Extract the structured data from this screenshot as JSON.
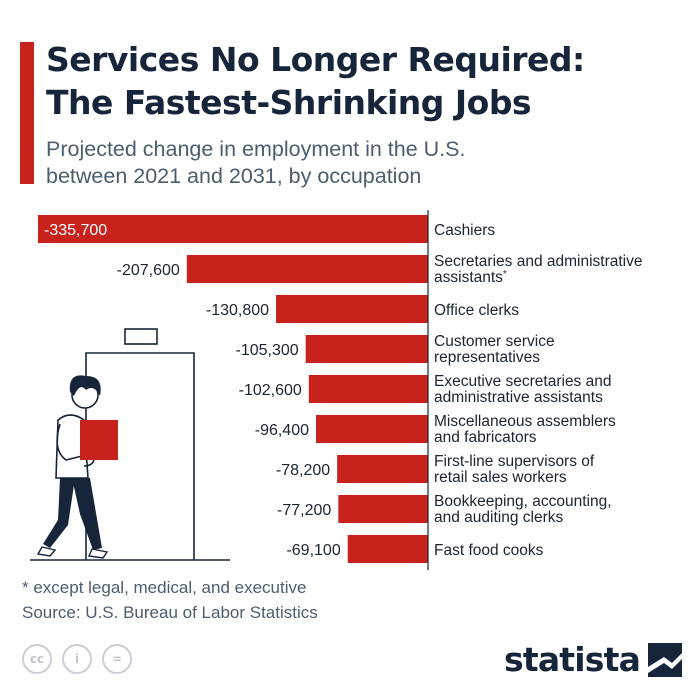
{
  "header": {
    "title": "Services No Longer Required:\nThe Fastest-Shrinking Jobs",
    "subtitle": "Projected change in employment in the U.S.\nbetween 2021 and 2031, by occupation"
  },
  "chart_data": {
    "type": "bar",
    "orientation": "horizontal",
    "categories": [
      [
        "Cashiers"
      ],
      [
        "Secretaries and administrative",
        "assistants*"
      ],
      [
        "Office clerks"
      ],
      [
        "Customer service",
        "representatives"
      ],
      [
        "Executive secretaries and",
        "administrative assistants"
      ],
      [
        "Miscellaneous assemblers",
        "and fabricators"
      ],
      [
        "First-line supervisors of",
        "retail sales workers"
      ],
      [
        "Bookkeeping, accounting,",
        "and auditing clerks"
      ],
      [
        "Fast food cooks"
      ]
    ],
    "values": [
      -335700,
      -207600,
      -130800,
      -105300,
      -102600,
      -96400,
      -78200,
      -77200,
      -69100
    ],
    "value_labels": [
      "-335,700",
      "-207,600",
      "-130,800",
      "-105,300",
      "-102,600",
      "-96,400",
      "-78,200",
      "-77,200",
      "-69,100"
    ],
    "xlim": [
      -335700,
      0
    ],
    "grid": false,
    "colors": {
      "bar": "#c8221c",
      "axis": "#1a2433",
      "label": "#1a2433",
      "inner_label": "#ffffff"
    }
  },
  "footer": {
    "footnote": "* except legal, medical, and executive",
    "source": "Source: U.S. Bureau of Labor Statistics",
    "license_icons": [
      "creative-commons-icon",
      "attribution-icon",
      "no-derivatives-icon"
    ],
    "brand": "statista"
  },
  "colors": {
    "accent": "#c8221c",
    "navy": "#17253a",
    "muted": "#4c5d70"
  }
}
